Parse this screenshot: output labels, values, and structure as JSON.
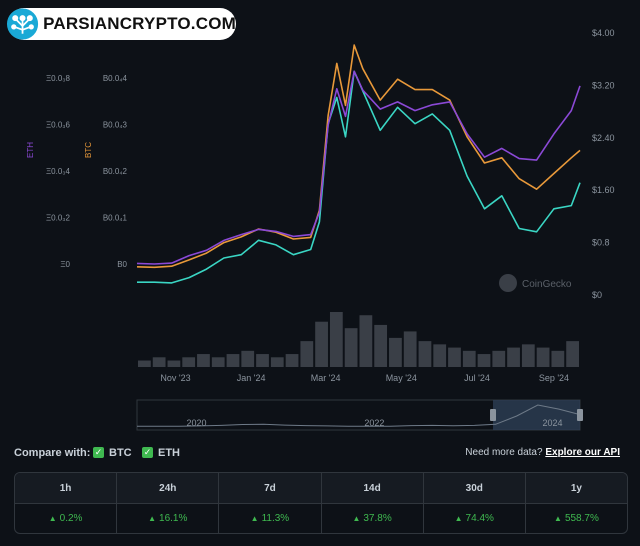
{
  "brand": {
    "name": "PARSIANCRYPTO.COM"
  },
  "colors": {
    "token": "#3ad6c4",
    "btc": "#e8993a",
    "eth": "#8b49d6",
    "up": "#3fb950",
    "background": "#0d1117"
  },
  "chart_data": {
    "type": "line",
    "x": [
      "2023-10-01",
      "2023-10-15",
      "2023-10-29",
      "2023-11-12",
      "2023-11-26",
      "2023-12-10",
      "2023-12-24",
      "2024-01-07",
      "2024-01-21",
      "2024-02-04",
      "2024-02-18",
      "2024-02-25",
      "2024-03-03",
      "2024-03-10",
      "2024-03-17",
      "2024-03-24",
      "2024-03-31",
      "2024-04-14",
      "2024-04-28",
      "2024-05-12",
      "2024-05-26",
      "2024-06-09",
      "2024-06-23",
      "2024-07-07",
      "2024-07-21",
      "2024-08-04",
      "2024-08-18",
      "2024-09-01",
      "2024-09-15",
      "2024-09-22"
    ],
    "series": [
      {
        "name": "",
        "axis": "usd",
        "color": "#3ad6c4",
        "values": [
          0.18,
          0.18,
          0.17,
          0.25,
          0.38,
          0.55,
          0.6,
          0.82,
          0.75,
          0.6,
          0.68,
          1.1,
          2.6,
          3.0,
          2.4,
          3.4,
          3.1,
          2.5,
          2.85,
          2.6,
          2.75,
          2.5,
          1.8,
          1.3,
          1.5,
          1.0,
          0.95,
          1.3,
          1.35,
          1.7
        ]
      },
      {
        "name": "BTC",
        "axis": "btc",
        "color": "#e8993a",
        "values": [
          0.0052,
          0.0051,
          0.0053,
          0.0065,
          0.0078,
          0.0098,
          0.0109,
          0.0124,
          0.0118,
          0.0105,
          0.0108,
          0.016,
          0.034,
          0.044,
          0.036,
          0.0475,
          0.043,
          0.037,
          0.041,
          0.039,
          0.039,
          0.037,
          0.03,
          0.025,
          0.026,
          0.022,
          0.02,
          0.023,
          0.026,
          0.0274
        ]
      },
      {
        "name": "ETH",
        "axis": "eth",
        "color": "#8b49d6",
        "values": [
          0.0105,
          0.0103,
          0.0106,
          0.0132,
          0.015,
          0.0184,
          0.0204,
          0.0222,
          0.0215,
          0.0198,
          0.0204,
          0.028,
          0.058,
          0.0705,
          0.061,
          0.0765,
          0.07,
          0.0635,
          0.066,
          0.063,
          0.065,
          0.066,
          0.055,
          0.047,
          0.05,
          0.0465,
          0.046,
          0.055,
          0.063,
          0.0715
        ]
      }
    ],
    "volume": [
      2,
      3,
      2,
      3,
      4,
      3,
      4,
      5,
      4,
      3,
      4,
      8,
      14,
      17,
      12,
      16,
      13,
      9,
      11,
      8,
      7,
      6,
      5,
      4,
      5,
      6,
      7,
      6,
      5,
      8
    ],
    "usd_axis": {
      "range": [
        0,
        4.0
      ],
      "ticks": [
        "$0",
        "$0.8",
        "$1.60",
        "$2.40",
        "$3.20",
        "$4.00"
      ],
      "tick_values": [
        0,
        0.8,
        1.6,
        2.4,
        3.2,
        4.0
      ]
    },
    "btc_axis": {
      "label": "BTC",
      "range": [
        0,
        0.05
      ],
      "ticks": [
        "B0",
        "B0.0₄1",
        "B0.0₄2",
        "B0.0₄3",
        "B0.0₄4"
      ],
      "tick_values": [
        0,
        0.01,
        0.02,
        0.03,
        0.04
      ]
    },
    "eth_axis": {
      "label": "ETH",
      "range": [
        0,
        0.09
      ],
      "ticks": [
        "Ξ0",
        "Ξ0.0₃2",
        "Ξ0.0₃4",
        "Ξ0.0₃6",
        "Ξ0.0₃8"
      ],
      "tick_values": [
        0,
        0.02,
        0.04,
        0.06,
        0.08
      ]
    },
    "x_ticks": [
      {
        "label": "Nov '23",
        "date": "2023-11-01"
      },
      {
        "label": "Jan '24",
        "date": "2024-01-01"
      },
      {
        "label": "Mar '24",
        "date": "2024-03-01"
      },
      {
        "label": "May '24",
        "date": "2024-05-01"
      },
      {
        "label": "Jul '24",
        "date": "2024-07-01"
      },
      {
        "label": "Sep '24",
        "date": "2024-09-01"
      }
    ],
    "navigator": {
      "labels": [
        "2020",
        "2022",
        "2024"
      ],
      "label_dates": [
        "2020-06-01",
        "2022-06-01",
        "2024-06-01"
      ],
      "range": [
        "2019-10-01",
        "2024-09-22"
      ],
      "selected": [
        "2023-10-01",
        "2024-09-22"
      ],
      "values": [
        0.05,
        0.05,
        0.06,
        0.08,
        0.12,
        0.18,
        0.2,
        0.14,
        0.1,
        0.08,
        0.06,
        0.05,
        0.06,
        0.1,
        0.12,
        0.09,
        0.12,
        0.2,
        0.8,
        1.6,
        1.3,
        0.9
      ]
    },
    "watermark": "CoinGecko",
    "grid": false,
    "legend": "none"
  },
  "compare": {
    "label": "Compare with:",
    "options": [
      {
        "label": "BTC",
        "checked": true
      },
      {
        "label": "ETH",
        "checked": true
      }
    ],
    "api_prompt": "Need more data?",
    "api_link": "Explore our API"
  },
  "performance": {
    "headers": [
      "1h",
      "24h",
      "7d",
      "14d",
      "30d",
      "1y"
    ],
    "values": [
      "0.2%",
      "16.1%",
      "11.3%",
      "37.8%",
      "74.4%",
      "558.7%"
    ]
  }
}
